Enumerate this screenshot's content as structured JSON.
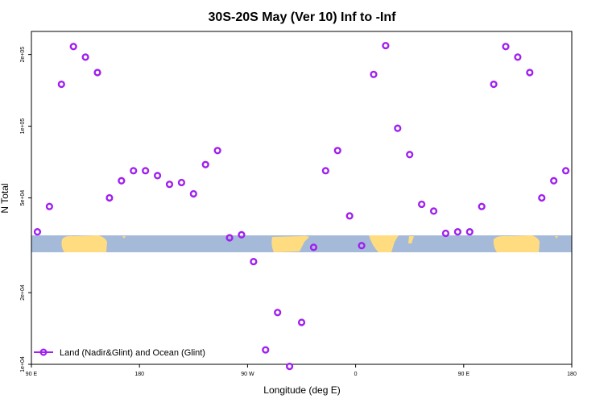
{
  "chart_data": {
    "type": "scatter",
    "title": "30S-20S May (Ver 10)   Inf to -Inf",
    "xlabel": "Longitude (deg E)",
    "ylabel": "N Total",
    "x_scale": "longitude starting at 90 E, spanning 450 degrees",
    "xlim": [
      90,
      540
    ],
    "y_scale": "log",
    "ylim": [
      10000,
      250000
    ],
    "x_ticks": [
      {
        "value": 90,
        "label": "90 E"
      },
      {
        "value": 180,
        "label": "180"
      },
      {
        "value": 270,
        "label": "90 W"
      },
      {
        "value": 360,
        "label": "0"
      },
      {
        "value": 450,
        "label": "90 E"
      },
      {
        "value": 540,
        "label": "180"
      }
    ],
    "y_ticks": [
      {
        "value": 10000,
        "label": "1e+04"
      },
      {
        "value": 20000,
        "label": "2e+04"
      },
      {
        "value": 50000,
        "label": "5e+04"
      },
      {
        "value": 100000,
        "label": "1e+05"
      },
      {
        "value": 200000,
        "label": "2e+05"
      }
    ],
    "grid": false,
    "legend": {
      "position": "bottom-left",
      "entries": [
        {
          "name": "Land (Nadir&Glint) and Ocean (Glint)",
          "color": "#a020f0"
        }
      ]
    },
    "series": [
      {
        "name": "Land (Nadir&Glint) and Ocean (Glint)",
        "color": "#a020f0",
        "x": [
          95,
          105,
          115,
          125,
          135,
          145,
          155,
          165,
          175,
          185,
          195,
          205,
          215,
          225,
          235,
          245,
          255,
          265,
          275,
          285,
          295,
          305,
          315,
          325,
          335,
          345,
          355,
          365,
          375,
          385,
          395,
          405,
          415,
          425,
          435,
          445,
          455,
          465,
          475,
          485,
          495,
          505,
          515,
          525,
          535
        ],
        "y": [
          36000,
          46000,
          150000,
          216000,
          195000,
          168000,
          50000,
          59000,
          65000,
          65000,
          62000,
          57000,
          58000,
          52000,
          69000,
          79000,
          34000,
          35000,
          27000,
          11500,
          16500,
          9800,
          15000,
          31000,
          65000,
          79000,
          42000,
          31500,
          165000,
          218000,
          98000,
          76000,
          47000,
          44000,
          35500,
          36000,
          36000,
          46000,
          150000,
          216000,
          195000,
          168000,
          50000,
          59000,
          65000
        ]
      }
    ],
    "land_ocean_strip": {
      "ocean_color": "#a5bad8",
      "land_color": "#ffdc7f"
    }
  }
}
